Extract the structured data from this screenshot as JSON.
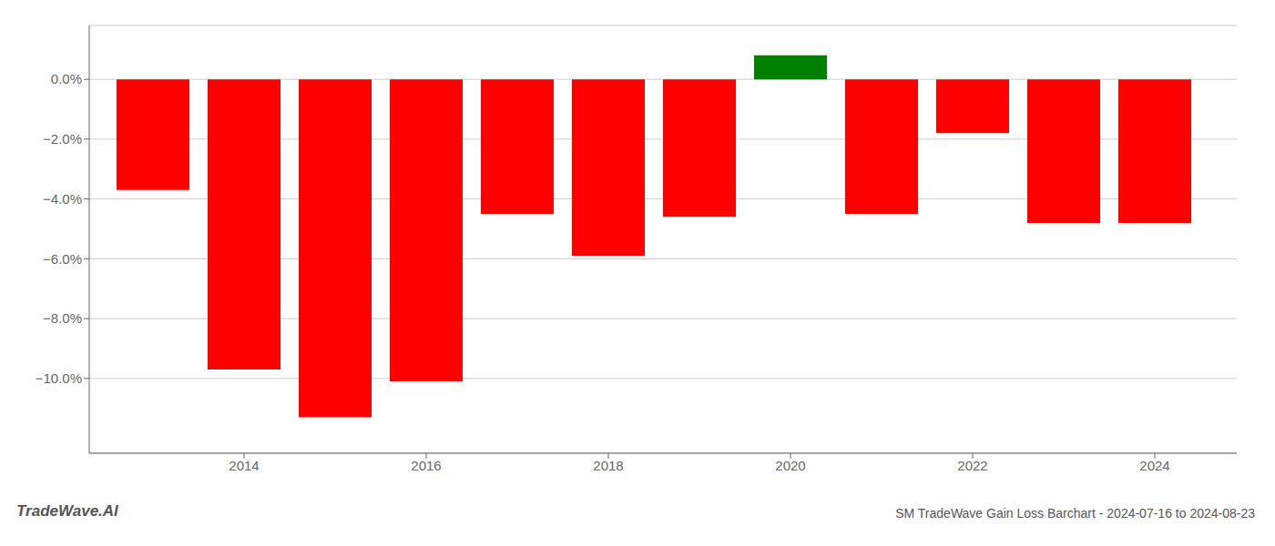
{
  "chart_data": {
    "type": "bar",
    "x": [
      2013,
      2014,
      2015,
      2016,
      2017,
      2018,
      2019,
      2020,
      2021,
      2022,
      2023,
      2024
    ],
    "values": [
      -0.037,
      -0.097,
      -0.113,
      -0.101,
      -0.045,
      -0.059,
      -0.046,
      0.008,
      -0.045,
      -0.018,
      -0.048,
      -0.048
    ],
    "colors": [
      "#ff0000",
      "#ff0000",
      "#ff0000",
      "#ff0000",
      "#ff0000",
      "#ff0000",
      "#ff0000",
      "#008000",
      "#ff0000",
      "#ff0000",
      "#ff0000",
      "#ff0000"
    ],
    "xlim": [
      2012.3,
      2024.9
    ],
    "xticks": [
      2014,
      2016,
      2018,
      2020,
      2022,
      2024
    ],
    "ylim": [
      -0.125,
      0.018
    ],
    "yticks": [
      {
        "value": 0.0,
        "label": "0.0%"
      },
      {
        "value": -0.02,
        "label": "−2.0%"
      },
      {
        "value": -0.04,
        "label": "−4.0%"
      },
      {
        "value": -0.06,
        "label": "−6.0%"
      },
      {
        "value": -0.08,
        "label": "−8.0%"
      },
      {
        "value": -0.1,
        "label": "−10.0%"
      }
    ],
    "grid": true,
    "annotations": [
      "TradeWave.AI",
      "SM TradeWave Gain Loss Barchart - 2024-07-16 to 2024-08-23"
    ]
  }
}
